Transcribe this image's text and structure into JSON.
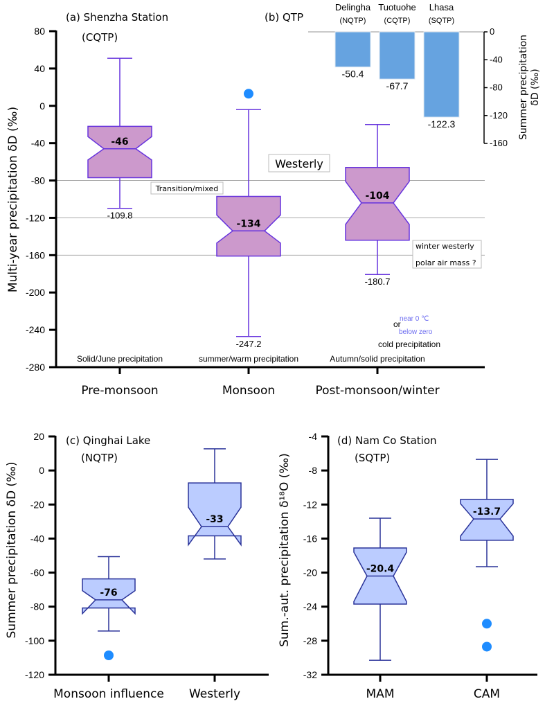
{
  "colors": {
    "purple_fill": "#cc99cc",
    "purple_stroke": "#6633dd",
    "blue_fill": "#bbccff",
    "blue_stroke": "#2a3399",
    "bar_fill": "#66a3e0",
    "outlier": "#1e8cff",
    "grid": "#a9a9a9",
    "annotation_blue": "#6b6bf0"
  },
  "chart_data": [
    {
      "id": "a",
      "type": "box",
      "title": "(a) Shenzha Station",
      "subtitle": "(CQTP)",
      "ylabel": "Multi-year precipitation δD (‰)",
      "xlabel": "",
      "ylim": [
        -280,
        80
      ],
      "yticks": [
        80,
        40,
        0,
        -40,
        -80,
        -120,
        -160,
        -200,
        -240,
        -280
      ],
      "gridlines": [
        -80,
        -120,
        -160
      ],
      "categories": [
        "Pre-monsoon",
        "Monsoon",
        "Post-monsoon/winter"
      ],
      "category_notes": [
        "Solid/June precipitation",
        "summer/warm precipitation",
        "Autumn/solid precipitation"
      ],
      "boxes": [
        {
          "category": "Pre-monsoon",
          "whisker_high": 51,
          "q3": -22,
          "notch_high": -33,
          "median": -46,
          "notch_low": -58,
          "q1": -77,
          "whisker_low": -109.8,
          "median_label": "-46",
          "low_label": "-109.8",
          "outliers": []
        },
        {
          "category": "Monsoon",
          "whisker_high": -4,
          "q3": -97,
          "notch_high": -117,
          "median": -134,
          "notch_low": -147,
          "q1": -161,
          "whisker_low": -247.2,
          "median_label": "-134",
          "low_label": "-247.2",
          "outliers": [
            13
          ]
        },
        {
          "category": "Post-monsoon/winter",
          "whisker_high": -20,
          "q3": -66,
          "notch_high": -81,
          "median": -104,
          "notch_low": -127,
          "q1": -144,
          "whisker_low": -180.7,
          "median_label": "-104",
          "low_label": "-180.7",
          "outliers": []
        }
      ],
      "annotations": {
        "westerly": "Westerly",
        "transition": "Transition/mixed",
        "winter_westerly": "winter westerly",
        "polar_air": "polar air mass ?",
        "or": "or",
        "near_zero": "near 0 ℃",
        "below_zero": "below zero",
        "cold_precip": "cold precipitation"
      }
    },
    {
      "id": "b",
      "type": "bar",
      "title": "(b) QTP",
      "ylabel_line1": "Summer precipitation",
      "ylabel_line2": "δD (‰)",
      "ylim": [
        -160,
        0
      ],
      "yticks": [
        0,
        -40,
        -80,
        -120,
        -160
      ],
      "categories": [
        "Delingha",
        "Tuotuohe",
        "Lhasa"
      ],
      "regions": [
        "(NQTP)",
        "(CQTP)",
        "(SQTP)"
      ],
      "values": [
        -50.4,
        -67.7,
        -122.3
      ],
      "value_labels": [
        "-50.4",
        "-67.7",
        "-122.3"
      ]
    },
    {
      "id": "c",
      "type": "box",
      "title": "(c) Qinghai Lake",
      "subtitle": "(NQTP)",
      "ylabel": "Summer precipitation δD (‰)",
      "ylim": [
        -120,
        20
      ],
      "yticks": [
        20,
        0,
        -20,
        -40,
        -60,
        -80,
        -100,
        -120
      ],
      "categories": [
        "Monsoon influence",
        "Westerly"
      ],
      "boxes": [
        {
          "category": "Monsoon influence",
          "whisker_high": -50.6,
          "q3": -63.7,
          "notch_high": -70.6,
          "median": -76,
          "notch_low": -84.1,
          "q1": -80.8,
          "whisker_low": -94.3,
          "median_label": "-76",
          "outliers": [
            -108.6
          ]
        },
        {
          "category": "Westerly",
          "whisker_high": 12.7,
          "q3": -7.3,
          "notch_high": -21.6,
          "median": -33,
          "notch_low": -43.7,
          "q1": -38.4,
          "whisker_low": -52,
          "median_label": "-33",
          "outliers": []
        }
      ]
    },
    {
      "id": "d",
      "type": "box",
      "title": "(d) Nam Co Station",
      "subtitle": "(SQTP)",
      "ylabel": "Sum.-aut. precipitation δ¹⁸O (‰)",
      "ylim": [
        -32,
        -4
      ],
      "yticks": [
        -4,
        -8,
        -12,
        -16,
        -20,
        -24,
        -28,
        -32
      ],
      "categories": [
        "MAM",
        "CAM"
      ],
      "boxes": [
        {
          "category": "MAM",
          "whisker_high": -13.6,
          "q3": -17.1,
          "notch_high": -17.6,
          "median": -20.4,
          "notch_low": -23.4,
          "q1": -23.7,
          "whisker_low": -30.3,
          "median_label": "-20.4",
          "outliers": []
        },
        {
          "category": "CAM",
          "whisker_high": -6.7,
          "q3": -11.4,
          "notch_high": -11.9,
          "median": -13.7,
          "notch_low": -15.7,
          "q1": -16.2,
          "whisker_low": -19.3,
          "median_label": "-13.7",
          "outliers": [
            -26.0,
            -28.7
          ]
        }
      ]
    }
  ]
}
